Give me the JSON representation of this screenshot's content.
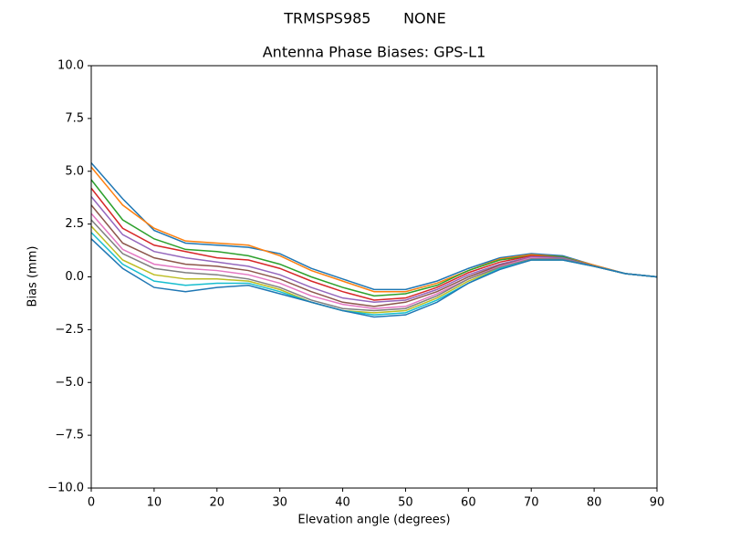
{
  "chart_data": {
    "type": "line",
    "suptitle": "TRMSPS985       NONE",
    "title": "Antenna Phase Biases: GPS-L1",
    "xlabel": "Elevation angle (degrees)",
    "ylabel": "Bias (mm)",
    "x": [
      0,
      5,
      10,
      15,
      20,
      25,
      30,
      35,
      40,
      45,
      50,
      55,
      60,
      65,
      70,
      75,
      80,
      85,
      90
    ],
    "xlim": [
      0,
      90
    ],
    "xticks": [
      0,
      10,
      20,
      30,
      40,
      50,
      60,
      70,
      80,
      90
    ],
    "ylim": [
      -10,
      10
    ],
    "yticks": [
      {
        "value": -10,
        "label": "−10.0"
      },
      {
        "value": -7.5,
        "label": "−7.5"
      },
      {
        "value": -5,
        "label": "−5.0"
      },
      {
        "value": -2.5,
        "label": "−2.5"
      },
      {
        "value": 0,
        "label": "0.0"
      },
      {
        "value": 2.5,
        "label": "2.5"
      },
      {
        "value": 5,
        "label": "5.0"
      },
      {
        "value": 7.5,
        "label": "7.5"
      },
      {
        "value": 10,
        "label": "10.0"
      }
    ],
    "series": [
      {
        "color": "#1f77b4",
        "values": [
          5.4,
          3.7,
          2.2,
          1.6,
          1.5,
          1.4,
          1.1,
          0.4,
          -0.1,
          -0.6,
          -0.6,
          -0.2,
          0.4,
          0.9,
          1.1,
          1.0,
          0.55,
          0.15,
          0
        ]
      },
      {
        "color": "#ff7f0e",
        "values": [
          5.2,
          3.4,
          2.3,
          1.7,
          1.6,
          1.5,
          1.0,
          0.3,
          -0.2,
          -0.7,
          -0.7,
          -0.3,
          0.3,
          0.85,
          1.05,
          0.95,
          0.55,
          0.15,
          0
        ]
      },
      {
        "color": "#2ca02c",
        "values": [
          4.6,
          2.7,
          1.8,
          1.3,
          1.2,
          1.0,
          0.6,
          0.0,
          -0.5,
          -0.9,
          -0.8,
          -0.4,
          0.3,
          0.8,
          1.0,
          0.95,
          0.5,
          0.15,
          0
        ]
      },
      {
        "color": "#d62728",
        "values": [
          4.2,
          2.3,
          1.5,
          1.2,
          0.9,
          0.8,
          0.4,
          -0.2,
          -0.7,
          -1.1,
          -1.0,
          -0.5,
          0.2,
          0.7,
          1.0,
          0.9,
          0.5,
          0.15,
          0
        ]
      },
      {
        "color": "#9467bd",
        "values": [
          3.8,
          2.0,
          1.2,
          0.9,
          0.7,
          0.5,
          0.1,
          -0.5,
          -1.0,
          -1.2,
          -1.1,
          -0.6,
          0.1,
          0.6,
          0.95,
          0.9,
          0.5,
          0.15,
          0
        ]
      },
      {
        "color": "#8c564b",
        "values": [
          3.4,
          1.6,
          0.9,
          0.6,
          0.5,
          0.3,
          -0.1,
          -0.7,
          -1.2,
          -1.4,
          -1.2,
          -0.7,
          0.0,
          0.55,
          0.9,
          0.85,
          0.5,
          0.15,
          0
        ]
      },
      {
        "color": "#e377c2",
        "values": [
          3.0,
          1.3,
          0.6,
          0.4,
          0.3,
          0.1,
          -0.3,
          -0.9,
          -1.3,
          -1.5,
          -1.4,
          -0.8,
          -0.1,
          0.5,
          0.9,
          0.85,
          0.5,
          0.15,
          0
        ]
      },
      {
        "color": "#7f7f7f",
        "values": [
          2.7,
          1.1,
          0.4,
          0.2,
          0.1,
          -0.1,
          -0.5,
          -1.1,
          -1.5,
          -1.6,
          -1.5,
          -0.9,
          -0.1,
          0.45,
          0.85,
          0.85,
          0.5,
          0.15,
          0
        ]
      },
      {
        "color": "#bcbd22",
        "values": [
          2.4,
          0.8,
          0.1,
          -0.1,
          -0.1,
          -0.2,
          -0.6,
          -1.2,
          -1.6,
          -1.7,
          -1.6,
          -1.0,
          -0.2,
          0.4,
          0.8,
          0.8,
          0.5,
          0.15,
          0
        ]
      },
      {
        "color": "#17becf",
        "values": [
          2.1,
          0.6,
          -0.2,
          -0.4,
          -0.3,
          -0.3,
          -0.7,
          -1.2,
          -1.6,
          -1.8,
          -1.7,
          -1.1,
          -0.3,
          0.4,
          0.8,
          0.8,
          0.5,
          0.15,
          0
        ]
      },
      {
        "color": "#1f77b4",
        "values": [
          1.8,
          0.4,
          -0.5,
          -0.7,
          -0.5,
          -0.4,
          -0.8,
          -1.2,
          -1.6,
          -1.9,
          -1.8,
          -1.2,
          -0.3,
          0.35,
          0.8,
          0.8,
          0.5,
          0.15,
          0
        ]
      }
    ]
  }
}
